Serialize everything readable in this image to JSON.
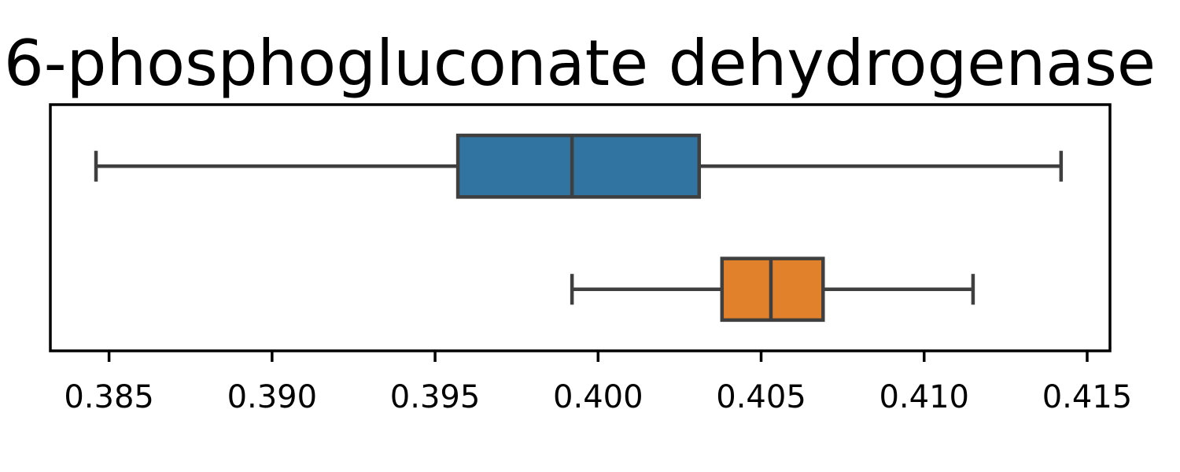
{
  "chart_data": {
    "type": "boxplot",
    "orientation": "horizontal",
    "title": "6-phosphogluconate dehydrogenase",
    "xlabel": "",
    "ylabel": "",
    "xlim": [
      0.3832,
      0.4157
    ],
    "xticks": [
      0.385,
      0.39,
      0.395,
      0.4,
      0.405,
      0.41,
      0.415
    ],
    "xtick_labels": [
      "0.385",
      "0.390",
      "0.395",
      "0.400",
      "0.405",
      "0.410",
      "0.415"
    ],
    "grid": false,
    "legend": "none",
    "series": [
      {
        "color": "#3274a1",
        "whisker_low": 0.3846,
        "q1": 0.3957,
        "median": 0.3992,
        "q3": 0.4031,
        "whisker_high": 0.4142
      },
      {
        "color": "#e1812c",
        "whisker_low": 0.3992,
        "q1": 0.4038,
        "median": 0.4053,
        "q3": 0.4069,
        "whisker_high": 0.4115
      }
    ],
    "line_color": "#3f3f3f"
  }
}
